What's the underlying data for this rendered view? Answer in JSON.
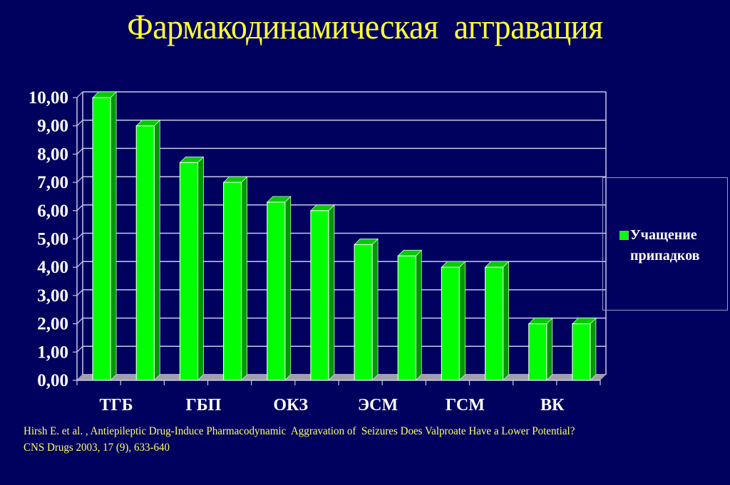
{
  "slide": {
    "title": "Фармакодинамическая  аггравация",
    "citation_line1": "Hirsh E. et al. , Antiepileptic Drug-Induce Pharmacodynamic  Aggravation of  Seizures Does Valproate Have a Lower Potential?",
    "citation_line2": "CNS Drugs 2003, 17 (9), 633-640",
    "colors": {
      "background": "#00005e",
      "title": "#ffff33",
      "citation": "#ffff66",
      "bar_front": "#00ff00",
      "bar_side": "#009900",
      "bar_top": "#00cc00",
      "gridline": "#c8c8f0",
      "floor": "#a0a0a8"
    }
  },
  "legend": {
    "label_line1": "Учащение",
    "label_line2": "припадков",
    "swatch_color": "#00ff00"
  },
  "chart_data": {
    "type": "bar",
    "title": "Фармакодинамическая  аггравация",
    "xlabel": "",
    "ylabel": "",
    "ylim": [
      0,
      10
    ],
    "ytick_step": 1,
    "yticks": [
      "0,00",
      "1,00",
      "2,00",
      "3,00",
      "4,00",
      "5,00",
      "6,00",
      "7,00",
      "8,00",
      "9,00",
      "10,00"
    ],
    "x_tick_labels": [
      "ТГБ",
      "ГБП",
      "ОКЗ",
      "ЭСМ",
      "ГСМ",
      "ВК"
    ],
    "categories": [
      "bar1",
      "bar2",
      "bar3",
      "bar4",
      "bar5",
      "bar6",
      "bar7",
      "bar8",
      "bar9",
      "bar10",
      "bar11",
      "bar12"
    ],
    "series": [
      {
        "name": "Учащение припадков",
        "color": "#00ff00",
        "values": [
          10.0,
          9.0,
          7.7,
          7.0,
          6.3,
          6.0,
          4.8,
          4.4,
          4.0,
          4.0,
          2.0,
          2.0
        ]
      }
    ],
    "grid": true,
    "style": "3d-column",
    "legend_position": "right"
  }
}
